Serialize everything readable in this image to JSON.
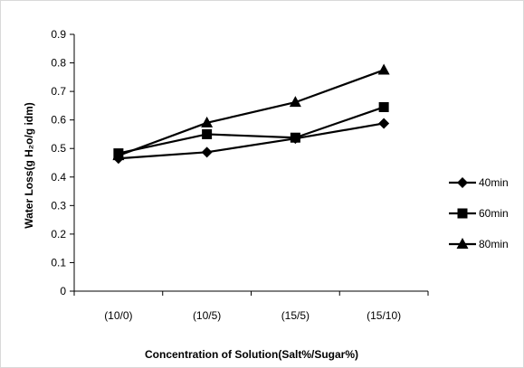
{
  "chart_data": {
    "type": "line",
    "categories": [
      "(10/0)",
      "(10/5)",
      "(15/5)",
      "(15/10)"
    ],
    "series": [
      {
        "name": "40min",
        "marker": "diamond",
        "values": [
          0.465,
          0.487,
          0.535,
          0.588
        ]
      },
      {
        "name": "60min",
        "marker": "square",
        "values": [
          0.483,
          0.55,
          0.538,
          0.645
        ]
      },
      {
        "name": "80min",
        "marker": "triangle",
        "values": [
          0.475,
          0.59,
          0.662,
          0.775
        ]
      }
    ],
    "xlabel": "Concentration of Solution(Salt%/Sugar%)",
    "ylabel": "Water Loss(g H₂o/g idm)",
    "ylim": [
      0,
      0.9
    ],
    "yticks": [
      "0",
      "0.1",
      "0.2",
      "0.3",
      "0.4",
      "0.5",
      "0.6",
      "0.7",
      "0.8",
      "0.9"
    ],
    "grid": false,
    "legend_position": "right",
    "line_color": "#000000"
  }
}
